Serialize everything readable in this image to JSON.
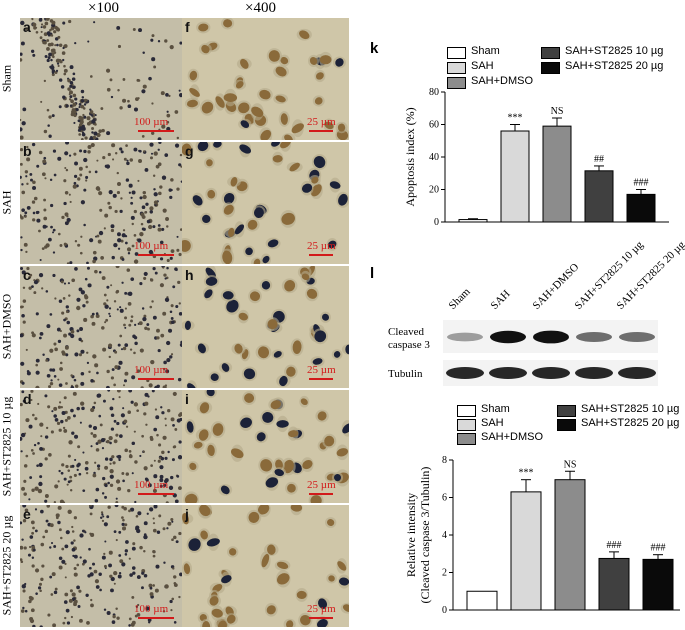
{
  "columns": {
    "low_mag": "×100",
    "high_mag": "×400"
  },
  "rows": [
    {
      "label": "Sham",
      "left_letter": "a",
      "right_letter": "f"
    },
    {
      "label": "SAH",
      "left_letter": "b",
      "right_letter": "g"
    },
    {
      "label": "SAH+DMSO",
      "left_letter": "c",
      "right_letter": "h"
    },
    {
      "label": "SAH+ST2825 10 µg",
      "left_letter": "d",
      "right_letter": "i"
    },
    {
      "label": "SAH+ST2825 20 µg",
      "left_letter": "e",
      "right_letter": "j"
    }
  ],
  "scale": {
    "low": "100 µm",
    "high": "25 µm"
  },
  "panel_k": {
    "letter": "k",
    "legend": [
      "Sham",
      "SAH",
      "SAH+DMSO",
      "SAH+ST2825 10 µg",
      "SAH+ST2825 20 µg"
    ]
  },
  "panel_l": {
    "letter": "l",
    "lanes": [
      "Sham",
      "SAH",
      "SAH+DMSO",
      "SAH+ST2825 10 µg",
      "SAH+ST2825 20 µg"
    ],
    "blot_labels": [
      "Cleaved",
      "caspase 3",
      "Tubulin"
    ],
    "legend": [
      "Sham",
      "SAH",
      "SAH+DMSO",
      "SAH+ST2825 10 µg",
      "SAH+ST2825 20 µg"
    ]
  },
  "colors": {
    "sham": "#ffffff",
    "sah": "#d9d9d9",
    "dmso": "#8c8c8c",
    "st10": "#404040",
    "st20": "#0a0a0a",
    "scale": "#d21a1a"
  },
  "chart_data": [
    {
      "type": "bar",
      "categories": [
        "Sham",
        "SAH",
        "SAH+DMSO",
        "SAH+ST2825 10 µg",
        "SAH+ST2825 20 µg"
      ],
      "values": [
        1.5,
        56,
        59,
        31.5,
        17
      ],
      "errors": [
        0.5,
        4,
        5,
        3,
        3
      ],
      "annotations": [
        "",
        "***",
        "NS",
        "##",
        "###"
      ],
      "ylabel": "Apoptosis index (%)",
      "ylim": [
        0,
        80
      ],
      "yticks": [
        0,
        20,
        40,
        60,
        80
      ]
    },
    {
      "type": "bar",
      "categories": [
        "Sham",
        "SAH",
        "SAH+DMSO",
        "SAH+ST2825 10 µg",
        "SAH+ST2825 20 µg"
      ],
      "values": [
        1.0,
        6.3,
        6.95,
        2.75,
        2.7
      ],
      "errors": [
        0,
        0.65,
        0.45,
        0.35,
        0.25
      ],
      "annotations": [
        "",
        "***",
        "NS",
        "###",
        "###"
      ],
      "ylabel": "Relative intensity",
      "ylabel2": "(Cleaved caspase 3/Tubulin)",
      "ylim": [
        0,
        8
      ],
      "yticks": [
        0,
        2,
        4,
        6,
        8
      ]
    }
  ]
}
